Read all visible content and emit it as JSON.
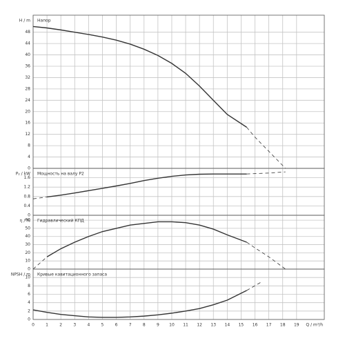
{
  "chart_data": [
    {
      "type": "line",
      "ylabel": "H / m",
      "title": "Напор",
      "xlim": [
        0,
        21
      ],
      "xticks": [
        0,
        1,
        2,
        3,
        4,
        5,
        6,
        7,
        8,
        9,
        10,
        11,
        12,
        13,
        14,
        15,
        16,
        17,
        18,
        19
      ],
      "ylim": [
        0,
        54
      ],
      "yticks": [
        0,
        4,
        8,
        12,
        16,
        20,
        24,
        28,
        32,
        36,
        40,
        44,
        48
      ],
      "grid": true,
      "series": [
        {
          "style": "solid",
          "color": "#333333",
          "x": [
            0,
            1,
            2,
            3,
            4,
            5,
            6,
            7,
            8,
            9,
            10,
            11,
            12,
            13,
            14,
            15.4
          ],
          "values": [
            50,
            49.5,
            48.8,
            48,
            47.2,
            46.3,
            45.2,
            43.8,
            42,
            39.8,
            37,
            33.5,
            29,
            24,
            19,
            14.5
          ]
        },
        {
          "style": "dashed",
          "color": "#333333",
          "x": [
            15.4,
            16,
            17,
            18,
            18.2
          ],
          "values": [
            14.5,
            11,
            6,
            1,
            0
          ]
        }
      ]
    },
    {
      "type": "line",
      "ylabel": "P₂ / kW",
      "title": "Мощность на валу P2",
      "xlim": [
        0,
        21
      ],
      "xticks": [
        0,
        1,
        2,
        3,
        4,
        5,
        6,
        7,
        8,
        9,
        10,
        11,
        12,
        13,
        14,
        15,
        16,
        17,
        18,
        19
      ],
      "ylim": [
        0,
        2
      ],
      "yticks": [
        0,
        0.4,
        0.8,
        1.2,
        1.6
      ],
      "grid": true,
      "series": [
        {
          "style": "dashed",
          "color": "#333333",
          "x": [
            0,
            1
          ],
          "values": [
            0.7,
            0.78
          ]
        },
        {
          "style": "solid",
          "color": "#333333",
          "x": [
            1,
            2,
            3,
            4,
            5,
            6,
            7,
            8,
            9,
            10,
            11,
            12,
            13,
            14,
            15.4
          ],
          "values": [
            0.78,
            0.86,
            0.95,
            1.05,
            1.15,
            1.25,
            1.36,
            1.48,
            1.58,
            1.66,
            1.72,
            1.75,
            1.76,
            1.76,
            1.76
          ]
        },
        {
          "style": "dashed",
          "color": "#333333",
          "x": [
            15.4,
            17,
            18.2
          ],
          "values": [
            1.76,
            1.8,
            1.85
          ]
        }
      ]
    },
    {
      "type": "line",
      "ylabel": "η / %",
      "title": "Гидравлический КПД",
      "xlim": [
        0,
        21
      ],
      "xticks": [
        0,
        1,
        2,
        3,
        4,
        5,
        6,
        7,
        8,
        9,
        10,
        11,
        12,
        13,
        14,
        15,
        16,
        17,
        18,
        19
      ],
      "ylim": [
        0,
        66
      ],
      "yticks": [
        0,
        10,
        20,
        30,
        40,
        50,
        60
      ],
      "grid": true,
      "series": [
        {
          "style": "dashed",
          "color": "#333333",
          "x": [
            0,
            1
          ],
          "values": [
            0,
            15
          ]
        },
        {
          "style": "solid",
          "color": "#333333",
          "x": [
            1,
            2,
            3,
            4,
            5,
            6,
            7,
            8,
            9,
            10,
            11,
            12,
            13,
            14,
            15.4
          ],
          "values": [
            15,
            25,
            33,
            40,
            46,
            50,
            54,
            56,
            58,
            58,
            57,
            54,
            49,
            42,
            33
          ]
        },
        {
          "style": "dashed",
          "color": "#333333",
          "x": [
            15.4,
            16,
            17,
            18.2
          ],
          "values": [
            33,
            26,
            15,
            0
          ]
        }
      ]
    },
    {
      "type": "line",
      "ylabel": "NPSH / m",
      "title": "Кривые кавитационного запаса",
      "xlabel": "Q / m³/h",
      "xlim": [
        0,
        21
      ],
      "xticks": [
        0,
        1,
        2,
        3,
        4,
        5,
        6,
        7,
        8,
        9,
        10,
        11,
        12,
        13,
        14,
        15,
        16,
        17,
        18,
        19
      ],
      "ylim": [
        0,
        12
      ],
      "yticks": [
        0,
        2,
        4,
        6,
        8,
        10
      ],
      "grid": true,
      "series": [
        {
          "style": "solid",
          "color": "#333333",
          "x": [
            0,
            1,
            2,
            3,
            4,
            5,
            6,
            7,
            8,
            9,
            10,
            11,
            12,
            13,
            14,
            15.4
          ],
          "values": [
            2.3,
            1.7,
            1.2,
            0.9,
            0.6,
            0.5,
            0.5,
            0.6,
            0.8,
            1.1,
            1.5,
            2,
            2.6,
            3.5,
            4.6,
            6.9
          ]
        },
        {
          "style": "dashed",
          "color": "#333333",
          "x": [
            15.4,
            16.5
          ],
          "values": [
            6.9,
            9
          ]
        }
      ]
    }
  ]
}
